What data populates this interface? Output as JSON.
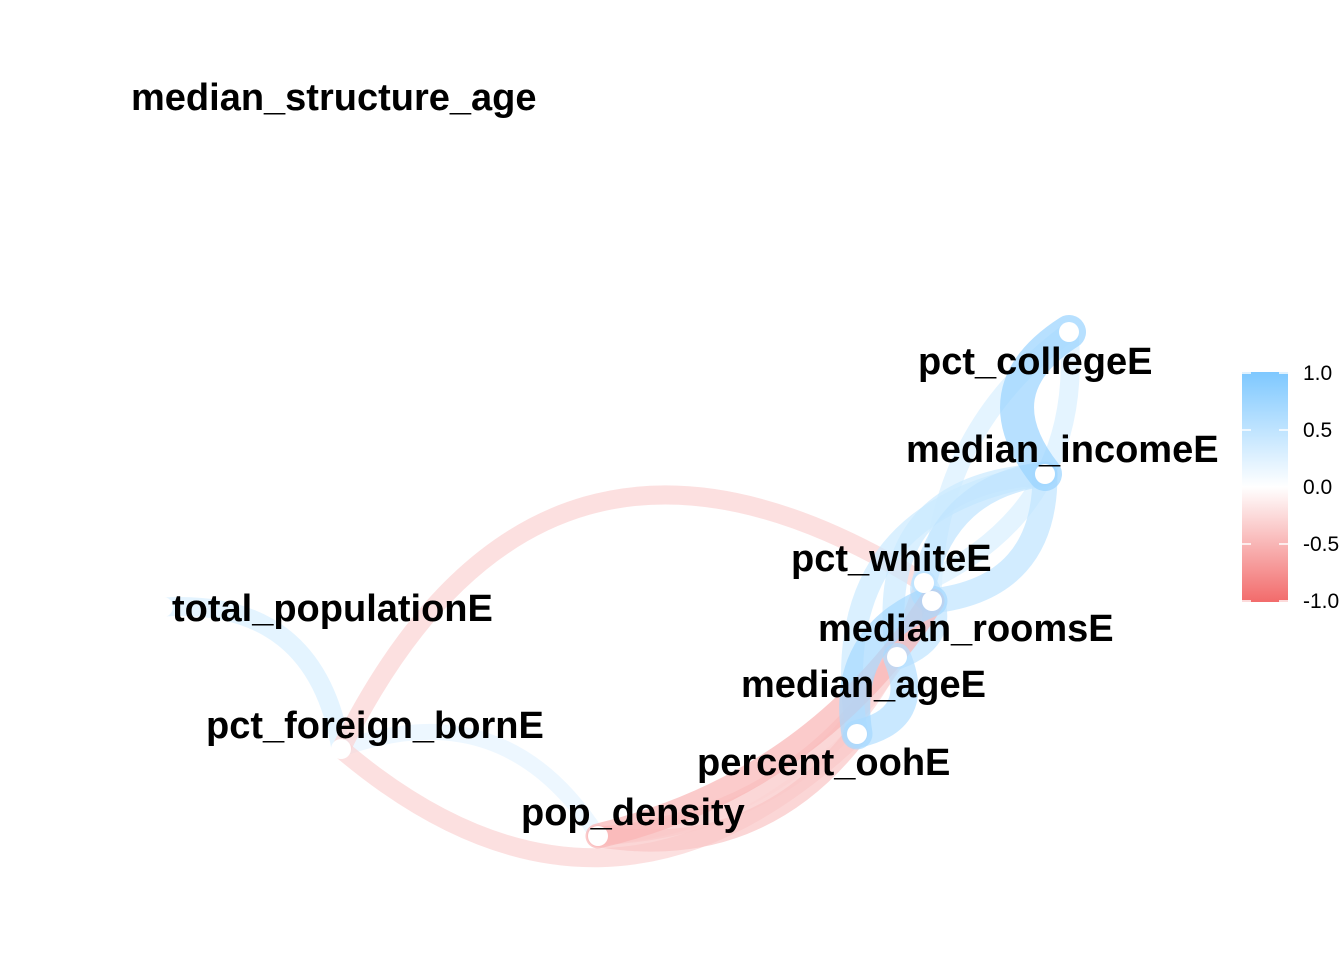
{
  "chart_data": {
    "type": "network",
    "nodes": [
      {
        "id": "median_structure_age",
        "label": "median_structure_age"
      },
      {
        "id": "total_populationE",
        "label": "total_populationE"
      },
      {
        "id": "pct_foreign_bornE",
        "label": "pct_foreign_bornE"
      },
      {
        "id": "pop_density",
        "label": "pop_density"
      },
      {
        "id": "percent_oohE",
        "label": "percent_oohE"
      },
      {
        "id": "median_ageE",
        "label": "median_ageE"
      },
      {
        "id": "median_roomsE",
        "label": "median_roomsE"
      },
      {
        "id": "pct_whiteE",
        "label": "pct_whiteE"
      },
      {
        "id": "median_incomeE",
        "label": "median_incomeE"
      },
      {
        "id": "pct_collegeE",
        "label": "pct_collegeE"
      }
    ],
    "edges": [
      {
        "from": "pct_collegeE",
        "to": "median_incomeE",
        "correlation": 0.8
      },
      {
        "from": "pct_collegeE",
        "to": "pct_whiteE",
        "correlation": 0.3
      },
      {
        "from": "pct_collegeE",
        "to": "median_roomsE",
        "correlation": 0.3
      },
      {
        "from": "median_incomeE",
        "to": "pct_whiteE",
        "correlation": 0.5
      },
      {
        "from": "median_incomeE",
        "to": "median_roomsE",
        "correlation": 0.5
      },
      {
        "from": "median_incomeE",
        "to": "median_ageE",
        "correlation": 0.4
      },
      {
        "from": "median_incomeE",
        "to": "percent_oohE",
        "correlation": 0.4
      },
      {
        "from": "pct_whiteE",
        "to": "median_roomsE",
        "correlation": 0.5
      },
      {
        "from": "pct_whiteE",
        "to": "median_ageE",
        "correlation": 0.5
      },
      {
        "from": "median_roomsE",
        "to": "percent_oohE",
        "correlation": 0.7
      },
      {
        "from": "median_ageE",
        "to": "percent_oohE",
        "correlation": 0.6
      },
      {
        "from": "total_populationE",
        "to": "pct_foreign_bornE",
        "correlation": 0.3
      },
      {
        "from": "pct_foreign_bornE",
        "to": "pop_density",
        "correlation": 0.2
      },
      {
        "from": "pct_foreign_bornE",
        "to": "pct_whiteE",
        "correlation": -0.3
      },
      {
        "from": "pct_foreign_bornE",
        "to": "percent_oohE",
        "correlation": -0.3
      },
      {
        "from": "pop_density",
        "to": "percent_oohE",
        "correlation": -0.4
      },
      {
        "from": "pop_density",
        "to": "median_ageE",
        "correlation": -0.3
      },
      {
        "from": "pop_density",
        "to": "median_roomsE",
        "correlation": -0.5
      },
      {
        "from": "pop_density",
        "to": "pct_whiteE",
        "correlation": -0.3
      }
    ],
    "legend": {
      "position": "right",
      "ticks": [
        "1.0",
        "0.5",
        "0.0",
        "-0.5",
        "-1.0"
      ],
      "range": [
        -1,
        1
      ],
      "colors": {
        "positive": "#7ec8ff",
        "neutral": "#ffffff",
        "negative": "#f26b6b"
      }
    }
  }
}
